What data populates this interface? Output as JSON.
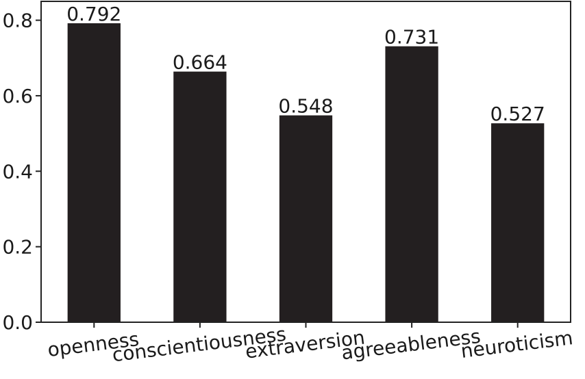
{
  "chart_data": {
    "type": "bar",
    "categories": [
      "openness",
      "conscientiousness",
      "extraversion",
      "agreeableness",
      "neuroticism"
    ],
    "values": [
      0.792,
      0.664,
      0.548,
      0.731,
      0.527
    ],
    "value_labels": [
      "0.792",
      "0.664",
      "0.548",
      "0.731",
      "0.527"
    ],
    "yticks": [
      0.0,
      0.2,
      0.4,
      0.6,
      0.8
    ],
    "ytick_labels": [
      "0.0",
      "0.2",
      "0.4",
      "0.6",
      "0.8"
    ],
    "ylim": [
      0,
      0.85
    ],
    "bar_color": "#231f20",
    "title": "",
    "xlabel": "",
    "ylabel": "",
    "grid": false,
    "xtick_rotation": "slight"
  }
}
